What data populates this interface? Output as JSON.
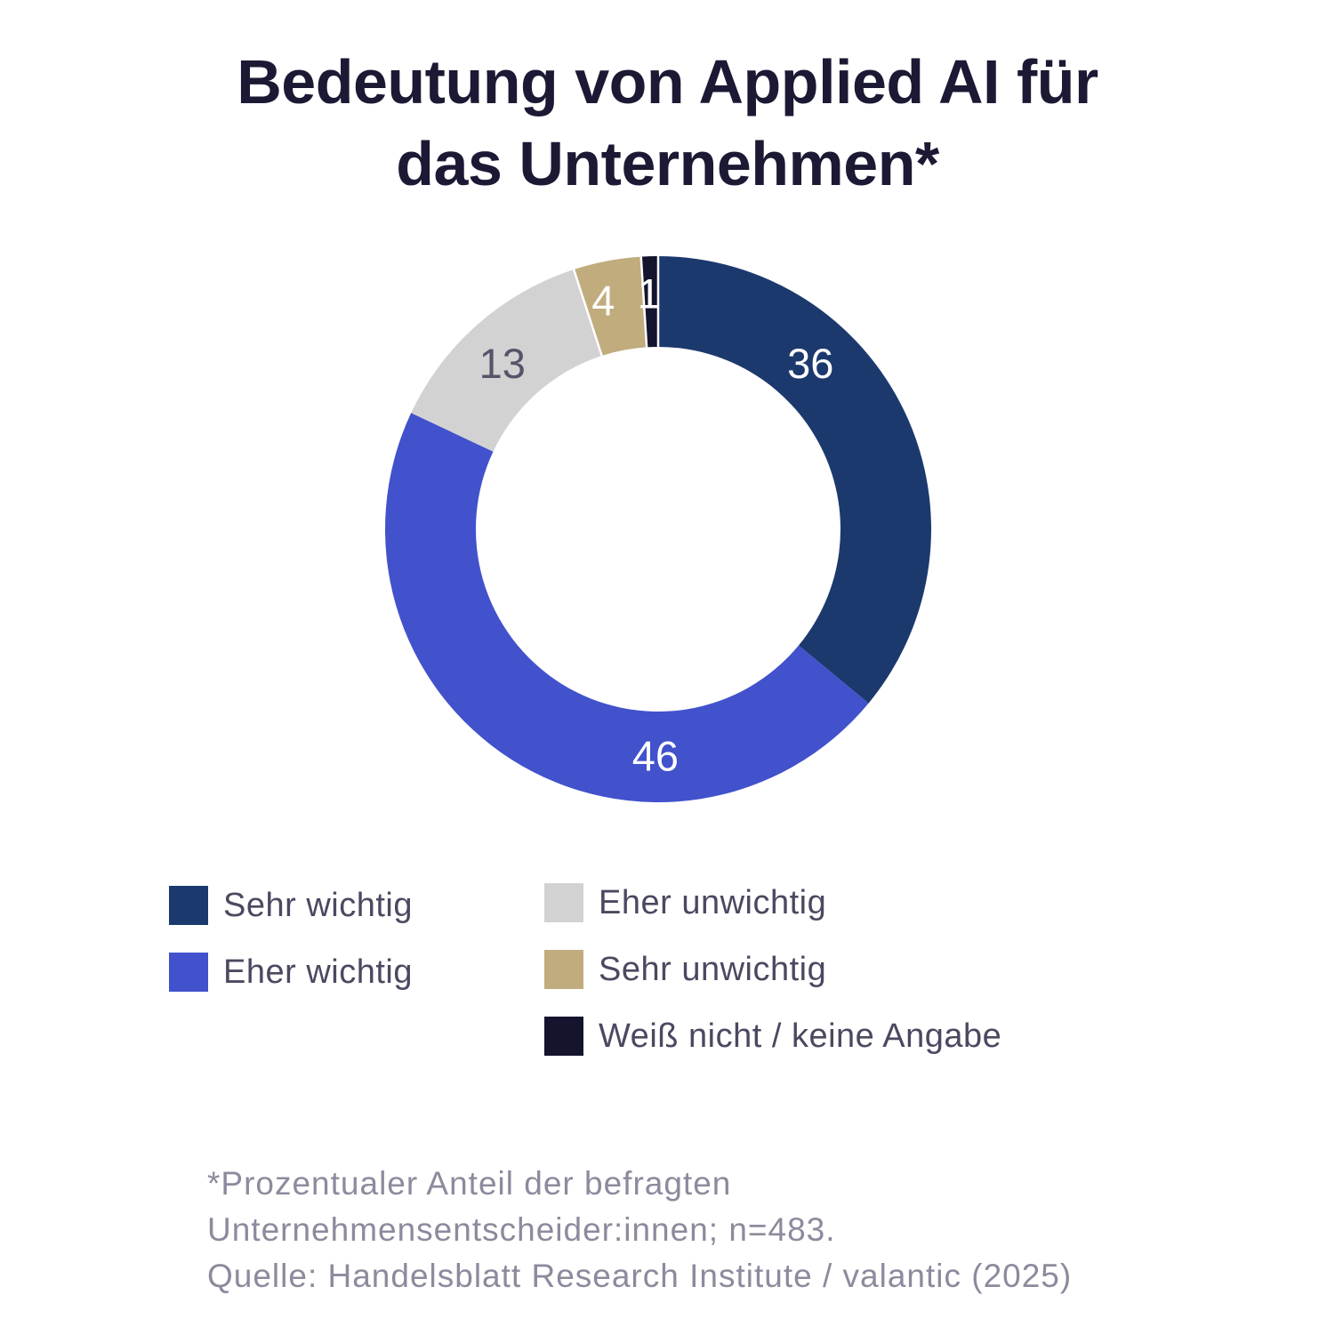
{
  "title": {
    "lines": [
      "Bedeutung von Applied AI für",
      "das Unternehmen*"
    ]
  },
  "legend": {
    "items": [
      {
        "label": "Sehr wichtig"
      },
      {
        "label": "Eher wichtig"
      },
      {
        "label": "Eher unwichtig"
      },
      {
        "label": "Sehr unwichtig"
      },
      {
        "label": "Weiß nicht / keine Angabe"
      }
    ]
  },
  "footnote": {
    "lines": [
      "*Prozentualer Anteil der befragten",
      "Unternehmensentscheider:innen; n=483.",
      "Quelle: Handelsblatt Research Institute / valantic (2025)"
    ]
  },
  "colors": {
    "background": "#FFFFFF",
    "title_text": "#1B1933",
    "legend_text": "#4A4960",
    "footnote_text": "#8C8B9D"
  },
  "chart_data": {
    "type": "pie",
    "subtype": "donut",
    "title": "Bedeutung von Applied AI für das Unternehmen*",
    "categories": [
      "Sehr wichtig",
      "Eher wichtig",
      "Eher unwichtig",
      "Sehr unwichtig",
      "Weiß nicht / keine Angabe"
    ],
    "values": [
      36,
      46,
      13,
      4,
      1
    ],
    "unit": "percent of respondents",
    "total": 100,
    "colors": [
      "#1C396E",
      "#4152CC",
      "#D2D2D2",
      "#C1AC7E",
      "#15142E"
    ],
    "label_colors": [
      "#FFFFFF",
      "#FFFFFF",
      "#55546A",
      "#FFFFFF",
      "#FFFFFF"
    ],
    "start_angle_deg": 0,
    "direction": "clockwise",
    "legend_position": "bottom",
    "layout": {
      "center": [
        740,
        595
      ],
      "outer_radius": 307,
      "inner_radius": 205,
      "label_angles_deg": [
        42.6,
        180.7,
        316.8,
        346.5,
        357.8
      ],
      "label_radii": [
        253,
        255,
        256,
        264,
        265
      ],
      "separator_slice_starts": [
        0,
        3,
        4
      ],
      "separator_color": "#FFFFFF",
      "separator_width": 2.5
    }
  }
}
